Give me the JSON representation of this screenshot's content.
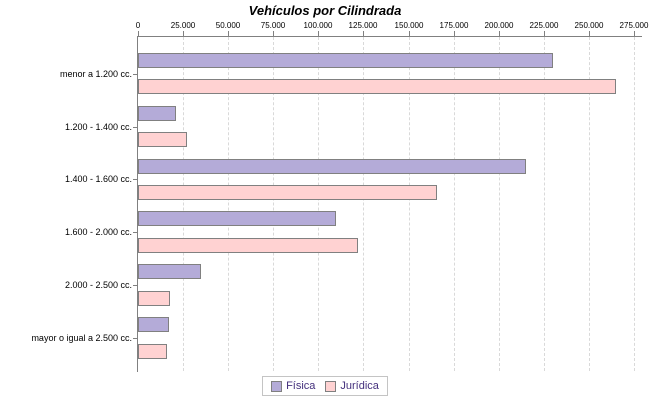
{
  "title": "Vehículos por Cilindrada",
  "colors": {
    "fisica_fill": "#b4abd8",
    "juridica_fill": "#ffd2d2",
    "bar_border": "#808080",
    "axis": "#808080",
    "grid": "#d9d9d9",
    "legend_border": "#c4c4c4",
    "legend_text": "#44307d",
    "title_text": "#000000",
    "background": "#ffffff"
  },
  "legend": {
    "items": [
      "Física",
      "Jurídica"
    ]
  },
  "chart_data": {
    "type": "bar",
    "orientation": "horizontal",
    "title": "Vehículos por Cilindrada",
    "xlabel": "",
    "ylabel": "",
    "categories": [
      "menor a 1.200 cc.",
      "1.200 - 1.400 cc.",
      "1.400 - 1.600 cc.",
      "1.600 - 2.000 cc.",
      "2.000 - 2.500 cc.",
      "mayor o igual a 2.500 cc."
    ],
    "series": [
      {
        "name": "Física",
        "color": "#b4abd8",
        "values": [
          230000,
          21000,
          215000,
          110000,
          35000,
          17000
        ]
      },
      {
        "name": "Jurídica",
        "color": "#ffd2d2",
        "values": [
          265000,
          27000,
          166000,
          122000,
          18000,
          16000
        ]
      }
    ],
    "xlim": [
      0,
      275000
    ],
    "x_ticks": [
      0,
      25000,
      50000,
      75000,
      100000,
      125000,
      150000,
      175000,
      200000,
      225000,
      250000,
      275000
    ],
    "x_tick_labels": [
      "0",
      "25.000",
      "50.000",
      "75.000",
      "100.000",
      "125.000",
      "150.000",
      "175.000",
      "200.000",
      "225.000",
      "250.000",
      "275.000"
    ],
    "grid": "vertical-dashed",
    "legend_position": "bottom-center"
  }
}
